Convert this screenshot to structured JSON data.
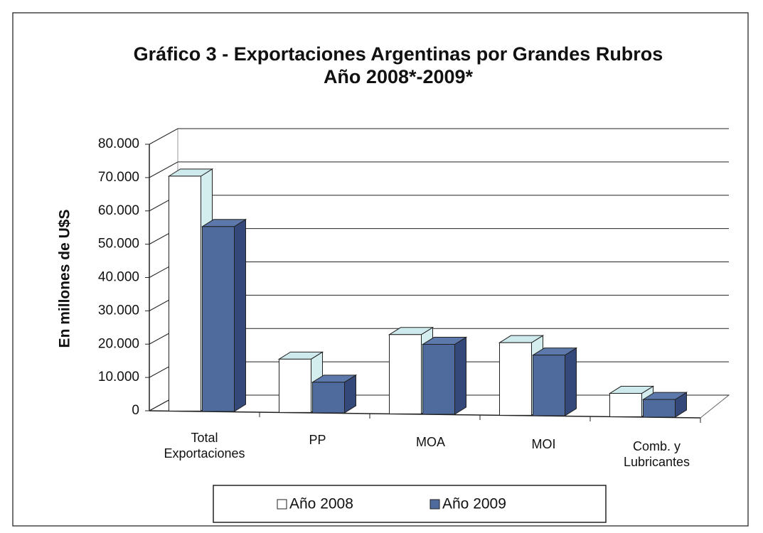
{
  "chart_data": {
    "type": "bar",
    "title": "Gráfico 3 - Exportaciones Argentinas por Grandes Rubros",
    "subtitle": "Año 2008*-2009*",
    "y_label": "En millones de U$S",
    "categories": [
      "Total Exportaciones",
      "PP",
      "MOA",
      "MOI",
      "Comb. y Lubricantes"
    ],
    "series": [
      {
        "name": "Año 2008",
        "color": "#ffffff",
        "values": [
          70500,
          16000,
          23800,
          21800,
          7000
        ]
      },
      {
        "name": "Año 2009",
        "color": "#4f6a9c",
        "values": [
          55500,
          9200,
          21000,
          18200,
          5300
        ]
      }
    ],
    "ylim": [
      0,
      80000
    ],
    "yticks": [
      0,
      {
        "value": 10000,
        "label": "10.000"
      },
      {
        "value": 20000,
        "label": "20.000"
      },
      {
        "value": 30000,
        "label": "30.000"
      },
      {
        "value": 40000,
        "label": "40.000"
      },
      {
        "value": 50000,
        "label": "50.000"
      },
      {
        "value": 60000,
        "label": "60.000"
      },
      {
        "value": 70000,
        "label": "70.000"
      },
      {
        "value": 80000,
        "label": "80.000"
      }
    ],
    "grid": true
  }
}
